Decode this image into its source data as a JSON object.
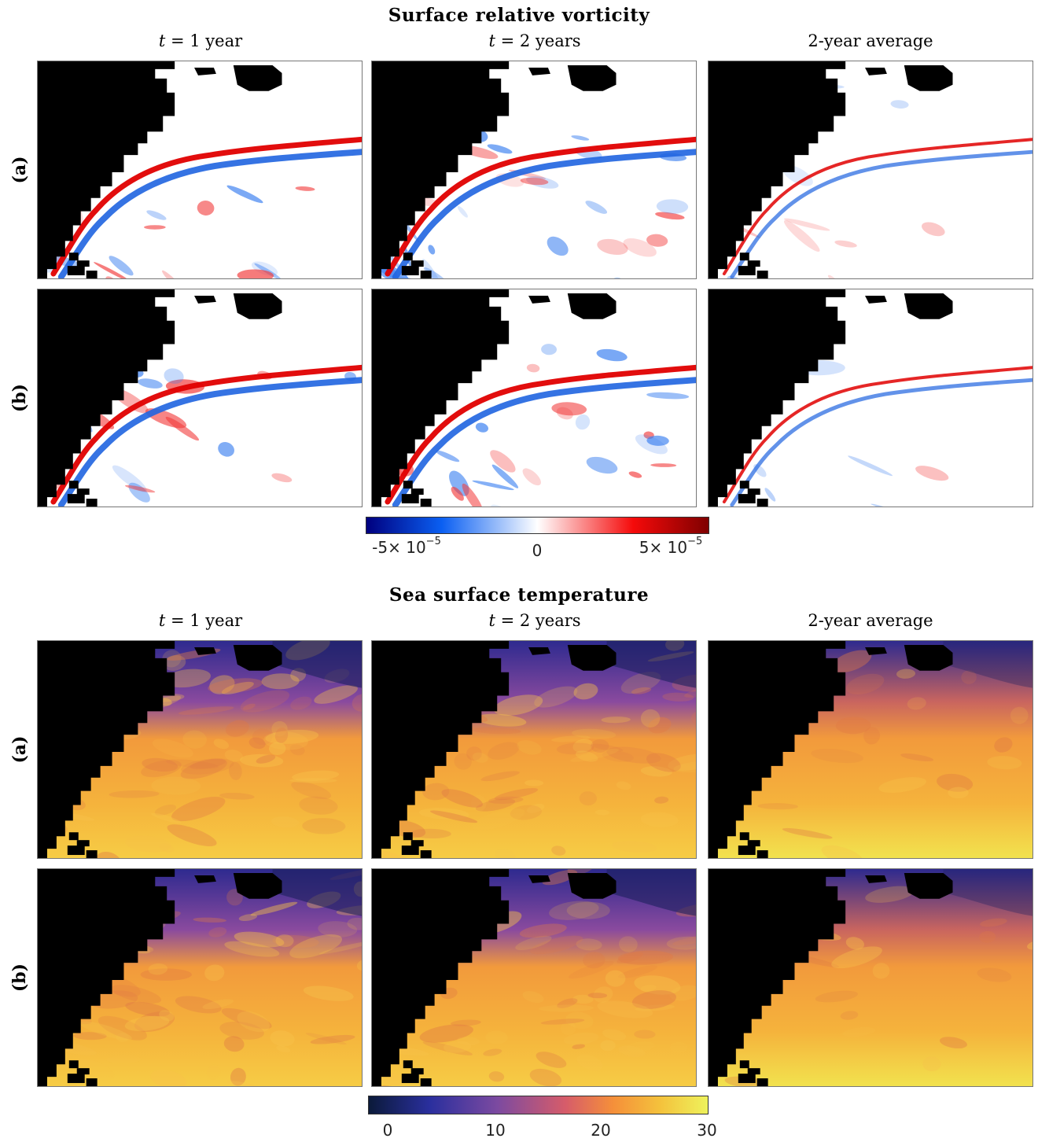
{
  "vorticity": {
    "title": "Surface relative vorticity",
    "columns": [
      {
        "prefix": "t",
        "suffix": " = 1 year"
      },
      {
        "prefix": "t",
        "suffix": " = 2 years"
      },
      {
        "prefix": "",
        "suffix": "2-year average"
      }
    ],
    "rows": [
      "(a)",
      "(b)"
    ],
    "colorbar": {
      "ticks": [
        {
          "mantissa": "-5",
          "times": "× 10",
          "exp": "−5"
        },
        {
          "plain": "0"
        },
        {
          "mantissa": "5",
          "times": "× 10",
          "exp": "−5"
        }
      ],
      "colors": [
        "#00007f",
        "#0a5ff2",
        "#ffffff",
        "#f50a0a",
        "#7f0000"
      ]
    }
  },
  "sst": {
    "title": "Sea surface temperature",
    "columns": [
      {
        "prefix": "t",
        "suffix": " = 1 year"
      },
      {
        "prefix": "t",
        "suffix": " = 2 years"
      },
      {
        "prefix": "",
        "suffix": "2-year average"
      }
    ],
    "rows": [
      "(a)",
      "(b)"
    ],
    "colorbar": {
      "ticks": [
        "0",
        "10",
        "20",
        "30"
      ],
      "colors": [
        "#0b1a3a",
        "#2a2f9e",
        "#7c4aa0",
        "#d65c6a",
        "#f58f3a",
        "#f4c23c",
        "#eef25c"
      ]
    }
  }
}
